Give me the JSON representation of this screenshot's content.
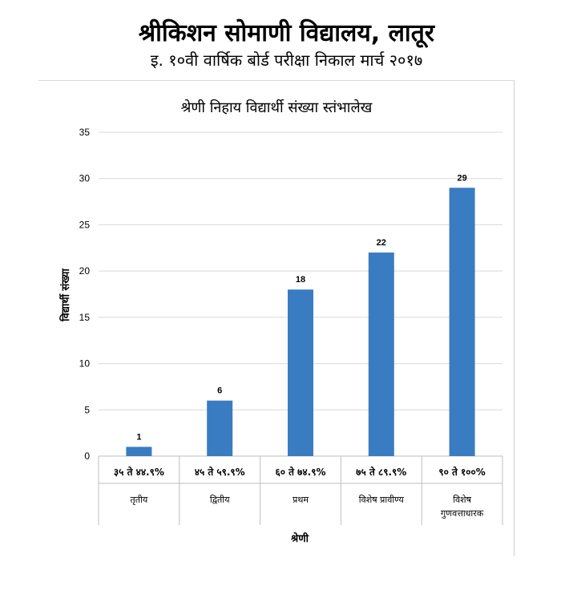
{
  "header": {
    "school_name": "श्रीकिशन सोमाणी विद्यालय, लातूर",
    "exam_title": "इ. १०वी वार्षिक बोर्ड परीक्षा निकाल मार्च २०१७"
  },
  "chart_data": {
    "type": "bar",
    "title": "श्रेणी निहाय विद्यार्थी संख्या स्तंभालेख",
    "xlabel": "श्रेणी",
    "ylabel": "विद्यार्थी संख्या",
    "ylim": [
      0,
      35
    ],
    "yticks": [
      0,
      5,
      10,
      15,
      20,
      25,
      30,
      35
    ],
    "grid": true,
    "legend": "none",
    "bar_color": "#3a7cc2",
    "categories": [
      {
        "range": "३५ ते ४४.९%",
        "grade": [
          "तृतीय"
        ]
      },
      {
        "range": "४५ ते ५९.९%",
        "grade": [
          "द्वितीय"
        ]
      },
      {
        "range": "६० ते ७४.९%",
        "grade": [
          "प्रथम"
        ]
      },
      {
        "range": "७५ ते ८९.९%",
        "grade": [
          "विशेष प्रावीण्य"
        ]
      },
      {
        "range": "९० ते १००%",
        "grade": [
          "विशेष",
          "गुणवत्ताधारक"
        ]
      }
    ],
    "values": [
      1,
      6,
      18,
      22,
      29
    ]
  }
}
